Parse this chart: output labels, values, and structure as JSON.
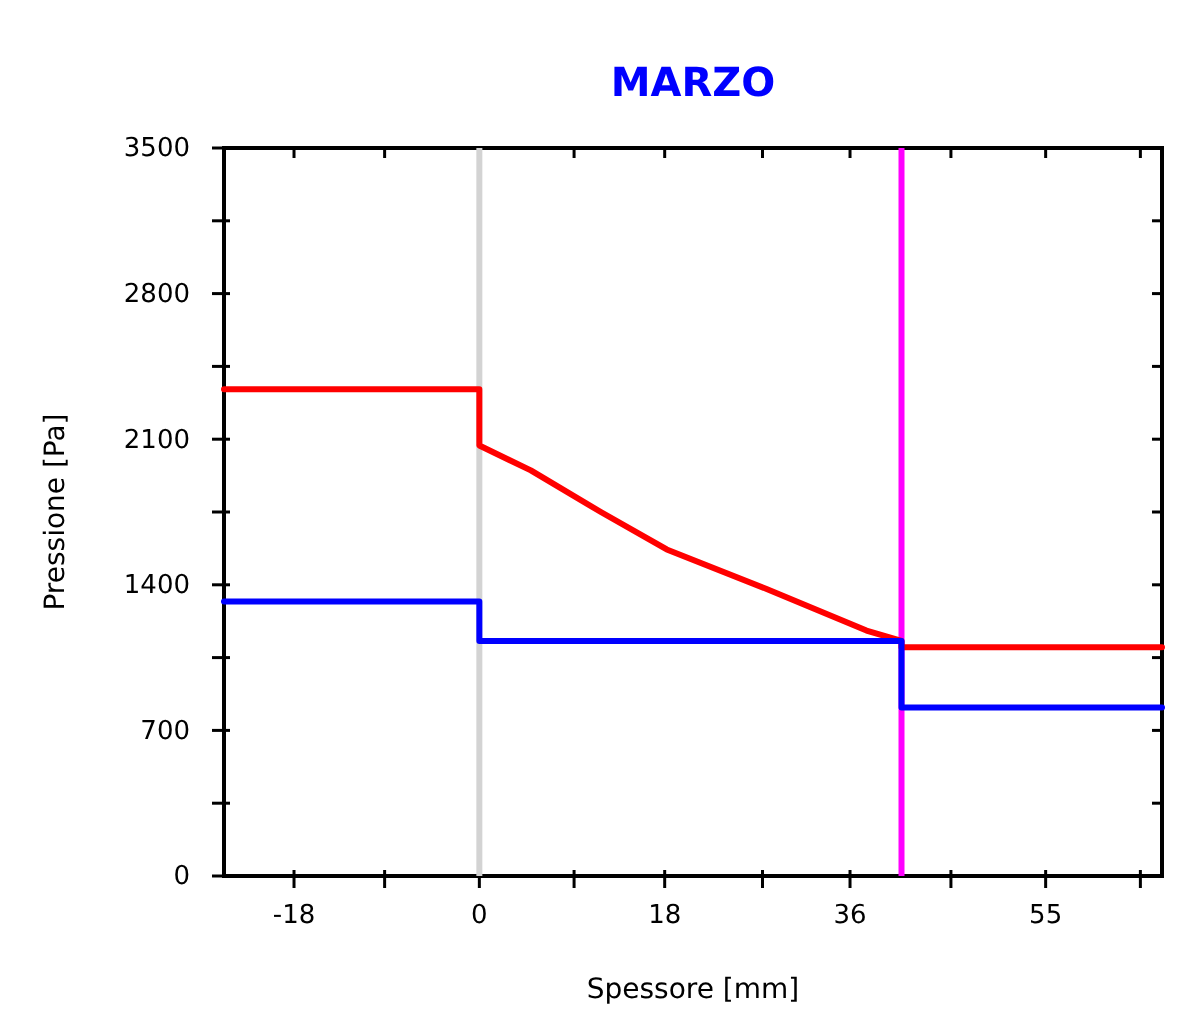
{
  "chart_data": {
    "type": "line",
    "title": "MARZO",
    "xlabel": "Spessore [mm]",
    "ylabel": "Pressione [Pa]",
    "xlim": [
      -24.8,
      66.3
    ],
    "xticks": [
      -18,
      {
        "value": -9.2,
        "label": null
      },
      0,
      {
        "value": 9.2,
        "label": null
      },
      18,
      {
        "value": 27.5,
        "label": null
      },
      36,
      {
        "value": 45.8,
        "label": null
      },
      55,
      {
        "value": 64.2,
        "label": null
      }
    ],
    "ylim": [
      0,
      3500
    ],
    "yticks": [
      0,
      {
        "value": 350,
        "label": null
      },
      700,
      {
        "value": 1050,
        "label": null
      },
      1400,
      {
        "value": 1750,
        "label": null
      },
      2100,
      {
        "value": 2450,
        "label": null
      },
      2800,
      {
        "value": 3150,
        "label": null
      },
      3500
    ],
    "grid": false,
    "line_style": "solid",
    "marker": "none",
    "ref_lines": [
      {
        "axis": "x",
        "value": 0,
        "label": null,
        "color": "#d3d3d3"
      },
      {
        "axis": "x",
        "value": 41,
        "label": null,
        "color": "#ff00ff"
      }
    ],
    "series": [
      {
        "color": "#ff0000",
        "x": [
          -24.8,
          0,
          0,
          5,
          11.8,
          18.2,
          27.9,
          37.6,
          41,
          41,
          66.3
        ],
        "values": [
          2340,
          2340,
          2070,
          1950,
          1750,
          1570,
          1380,
          1180,
          1130,
          1100,
          1100
        ]
      },
      {
        "color": "#0000ff",
        "x": [
          -24.8,
          0,
          0,
          41,
          41,
          66.3
        ],
        "values": [
          1320,
          1320,
          1130,
          1130,
          810,
          810
        ]
      }
    ]
  }
}
